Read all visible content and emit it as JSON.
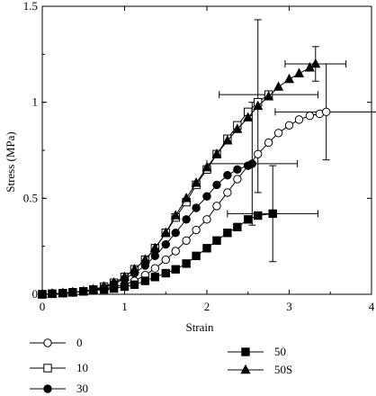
{
  "chart_data": {
    "type": "line",
    "xlabel": "Strain",
    "ylabel": "Stress (MPa)",
    "xlim": [
      0,
      4
    ],
    "ylim": [
      0,
      1.5
    ],
    "x_ticks": [
      0,
      1,
      2,
      3,
      4
    ],
    "x_tick_labels": [
      "0",
      "1",
      "2",
      "3",
      "4"
    ],
    "y_ticks": [
      0,
      0.5,
      1,
      1.5
    ],
    "y_tick_labels": [
      "0",
      "0.5",
      "1",
      "1.5"
    ],
    "grid": false,
    "legend_position": "bottom",
    "series": [
      {
        "name": "0",
        "marker": "circle-open",
        "x": [
          0,
          0.12,
          0.25,
          0.37,
          0.5,
          0.62,
          0.75,
          0.87,
          1.0,
          1.12,
          1.25,
          1.37,
          1.5,
          1.62,
          1.75,
          1.87,
          2.0,
          2.12,
          2.25,
          2.37,
          2.5,
          2.62,
          2.75,
          2.87,
          3.0,
          3.12,
          3.25,
          3.37,
          3.45
        ],
        "y": [
          0,
          0.003,
          0.006,
          0.01,
          0.015,
          0.02,
          0.028,
          0.038,
          0.05,
          0.07,
          0.1,
          0.135,
          0.18,
          0.225,
          0.28,
          0.335,
          0.39,
          0.46,
          0.53,
          0.6,
          0.67,
          0.73,
          0.79,
          0.84,
          0.88,
          0.91,
          0.93,
          0.94,
          0.95
        ],
        "error_point": {
          "x": 3.45,
          "y": 0.95,
          "xerr": [
            0.62,
            0.63
          ],
          "yerr": [
            0.25,
            0.25
          ]
        }
      },
      {
        "name": "10",
        "marker": "square-open",
        "x": [
          0,
          0.12,
          0.25,
          0.37,
          0.5,
          0.62,
          0.75,
          0.87,
          1.0,
          1.12,
          1.25,
          1.37,
          1.5,
          1.62,
          1.75,
          1.87,
          2.0,
          2.12,
          2.25,
          2.37,
          2.5,
          2.62,
          2.75
        ],
        "y": [
          0,
          0.003,
          0.006,
          0.01,
          0.015,
          0.025,
          0.04,
          0.06,
          0.09,
          0.13,
          0.18,
          0.24,
          0.32,
          0.4,
          0.48,
          0.57,
          0.65,
          0.73,
          0.81,
          0.88,
          0.95,
          1.0,
          1.04
        ],
        "error_point": {
          "x": 2.75,
          "y": 1.04,
          "xerr": [
            0.6,
            0.6
          ],
          "yerr": [
            0.0,
            0.0
          ]
        }
      },
      {
        "name": "30",
        "marker": "circle-filled",
        "x": [
          0,
          0.12,
          0.25,
          0.37,
          0.5,
          0.62,
          0.75,
          0.87,
          1.0,
          1.12,
          1.25,
          1.37,
          1.5,
          1.62,
          1.75,
          1.87,
          2.0,
          2.12,
          2.25,
          2.37,
          2.5,
          2.55
        ],
        "y": [
          0,
          0.003,
          0.006,
          0.01,
          0.015,
          0.02,
          0.035,
          0.055,
          0.08,
          0.11,
          0.15,
          0.2,
          0.26,
          0.32,
          0.39,
          0.45,
          0.51,
          0.57,
          0.62,
          0.65,
          0.67,
          0.68
        ],
        "error_point": {
          "x": 2.55,
          "y": 0.68,
          "xerr": [
            0.55,
            0.55
          ],
          "yerr": [
            0.32,
            0.32
          ]
        }
      },
      {
        "name": "50",
        "marker": "square-filled",
        "x": [
          0,
          0.12,
          0.25,
          0.37,
          0.5,
          0.62,
          0.75,
          0.87,
          1.0,
          1.12,
          1.25,
          1.37,
          1.5,
          1.62,
          1.75,
          1.87,
          2.0,
          2.12,
          2.25,
          2.37,
          2.5,
          2.62,
          2.8
        ],
        "y": [
          0,
          0.003,
          0.006,
          0.01,
          0.015,
          0.02,
          0.025,
          0.03,
          0.04,
          0.05,
          0.07,
          0.09,
          0.11,
          0.13,
          0.16,
          0.2,
          0.24,
          0.28,
          0.32,
          0.35,
          0.39,
          0.41,
          0.42
        ],
        "error_point": {
          "x": 2.8,
          "y": 0.42,
          "xerr": [
            0.55,
            0.55
          ],
          "yerr": [
            0.25,
            0.25
          ]
        }
      },
      {
        "name": "50S",
        "marker": "triangle-filled",
        "x": [
          0,
          0.12,
          0.25,
          0.37,
          0.5,
          0.62,
          0.75,
          0.87,
          1.0,
          1.12,
          1.25,
          1.37,
          1.5,
          1.62,
          1.75,
          1.87,
          2.0,
          2.12,
          2.25,
          2.37,
          2.5,
          2.62,
          2.75,
          2.87,
          3.0,
          3.12,
          3.25,
          3.32
        ],
        "y": [
          0,
          0.003,
          0.006,
          0.01,
          0.015,
          0.025,
          0.04,
          0.06,
          0.09,
          0.13,
          0.18,
          0.24,
          0.32,
          0.41,
          0.5,
          0.58,
          0.66,
          0.73,
          0.8,
          0.86,
          0.92,
          0.98,
          1.03,
          1.08,
          1.12,
          1.15,
          1.18,
          1.2
        ],
        "error_point": {
          "x": 3.32,
          "y": 1.2,
          "xerr": [
            0.37,
            0.37
          ],
          "yerr": [
            0.09,
            0.09
          ]
        }
      }
    ],
    "extra_error_bars": [
      {
        "x": 2.62,
        "y": 0.98,
        "xerr": [
          0.0,
          0.0
        ],
        "yerr": [
          0.45,
          0.45
        ]
      },
      {
        "x": 2.5,
        "y": 0.35,
        "xerr": [
          0.0,
          0.0
        ],
        "yerr": [
          0.0,
          0.0
        ]
      }
    ]
  },
  "legend": {
    "items": [
      {
        "label": "0",
        "marker": "circle-open"
      },
      {
        "label": "10",
        "marker": "square-open"
      },
      {
        "label": "30",
        "marker": "circle-filled"
      },
      {
        "label": "50",
        "marker": "square-filled"
      },
      {
        "label": "50S",
        "marker": "triangle-filled"
      }
    ]
  }
}
